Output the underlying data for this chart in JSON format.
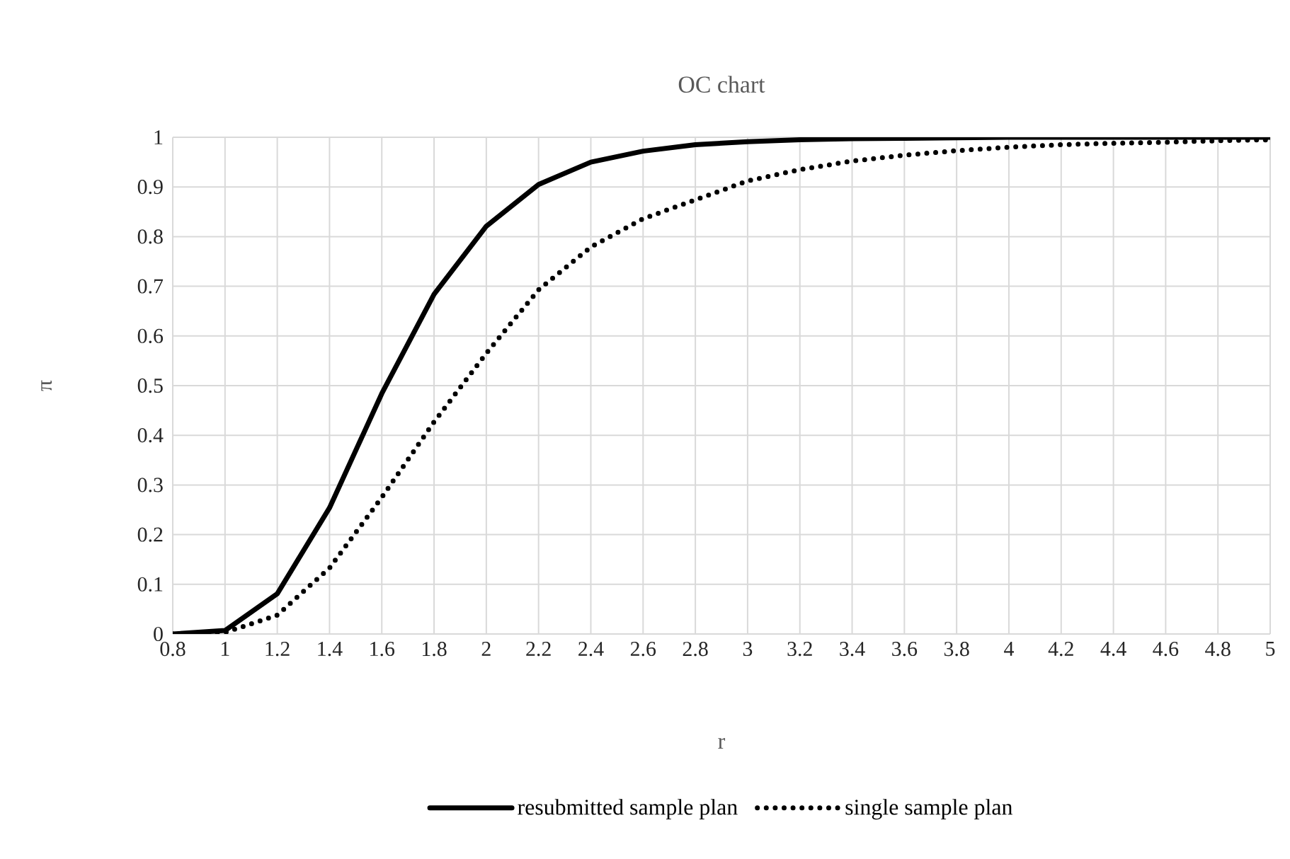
{
  "chart_data": {
    "type": "line",
    "title": "OC chart",
    "xlabel": "r",
    "ylabel": "π",
    "x": [
      0.8,
      1,
      1.2,
      1.4,
      1.6,
      1.8,
      2,
      2.2,
      2.4,
      2.6,
      2.8,
      3,
      3.2,
      3.4,
      3.6,
      3.8,
      4,
      4.2,
      4.4,
      4.6,
      4.8,
      5
    ],
    "series": [
      {
        "name": "resubmitted sample plan",
        "color": "#000000",
        "line_style": "solid",
        "values": [
          0,
          0.007,
          0.081,
          0.254,
          0.484,
          0.684,
          0.821,
          0.905,
          0.95,
          0.972,
          0.985,
          0.991,
          0.995,
          0.997,
          0.998,
          0.999,
          1,
          1,
          1,
          1,
          1,
          1
        ]
      },
      {
        "name": "single sample plan",
        "color": "#000000",
        "line_style": "dotted",
        "values": [
          0,
          0.003,
          0.038,
          0.133,
          0.275,
          0.427,
          0.565,
          0.693,
          0.779,
          0.836,
          0.874,
          0.912,
          0.935,
          0.952,
          0.964,
          0.973,
          0.98,
          0.985,
          0.988,
          0.99,
          0.993,
          0.995
        ]
      }
    ],
    "xlim": [
      0.8,
      5
    ],
    "ylim": [
      0,
      1
    ],
    "xticks": [
      0.8,
      1,
      1.2,
      1.4,
      1.6,
      1.8,
      2,
      2.2,
      2.4,
      2.6,
      2.8,
      3,
      3.2,
      3.4,
      3.6,
      3.8,
      4,
      4.2,
      4.4,
      4.6,
      4.8,
      5
    ],
    "yticks": [
      0,
      0.1,
      0.2,
      0.3,
      0.4,
      0.5,
      0.6,
      0.7,
      0.8,
      0.9,
      1
    ],
    "grid": true,
    "legend": "bottom"
  }
}
